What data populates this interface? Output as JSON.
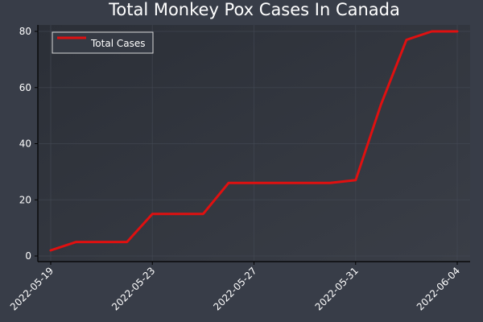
{
  "chart_data": {
    "type": "line",
    "title": "Total Monkey Pox Cases In Canada",
    "xlabel": "",
    "ylabel": "",
    "x": [
      "2022-05-19",
      "2022-05-20",
      "2022-05-21",
      "2022-05-22",
      "2022-05-23",
      "2022-05-24",
      "2022-05-25",
      "2022-05-26",
      "2022-05-27",
      "2022-05-28",
      "2022-05-29",
      "2022-05-30",
      "2022-05-31",
      "2022-06-01",
      "2022-06-02",
      "2022-06-03",
      "2022-06-04"
    ],
    "x_tick_labels": [
      "2022-05-19",
      "2022-05-23",
      "2022-05-27",
      "2022-05-31",
      "2022-06-04"
    ],
    "ylim": [
      0,
      80
    ],
    "y_ticks": [
      0,
      20,
      40,
      60,
      80
    ],
    "legend_position": "top-left",
    "grid": true,
    "series": [
      {
        "name": "Total Cases",
        "color": "#e01010",
        "values": [
          2,
          5,
          5,
          5,
          15,
          15,
          15,
          26,
          26,
          26,
          26,
          26,
          27,
          54,
          77,
          80,
          80
        ]
      }
    ]
  }
}
